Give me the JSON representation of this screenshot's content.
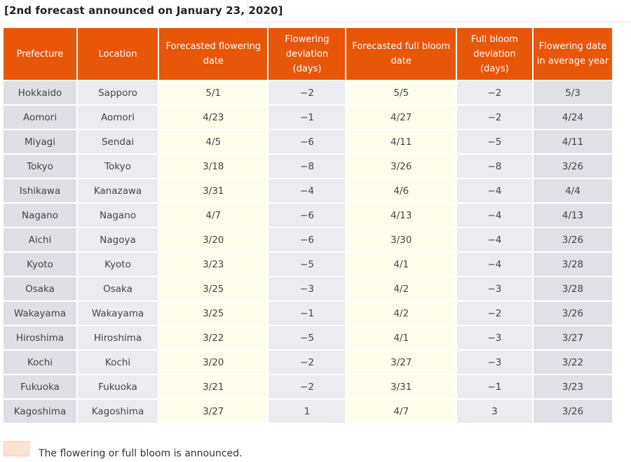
{
  "heading": "[2nd forecast announced on January 23, 2020]",
  "table": {
    "headers": {
      "prefecture": "Prefecture",
      "location": "Location",
      "forecasted_flowering_date": "Forecasted flowering date",
      "flowering_deviation": "Flowering deviation (days)",
      "forecasted_full_bloom_date": "Forecasted full bloom date",
      "full_bloom_deviation": "Full bloom deviation (days)",
      "flowering_date_average_year": "Flowering date in average year"
    },
    "rows": [
      {
        "prefecture": "Hokkaido",
        "location": "Sapporo",
        "flowering": "5/1",
        "flowering_dev": "−2",
        "full_bloom": "5/5",
        "full_bloom_dev": "−2",
        "average": "5/3"
      },
      {
        "prefecture": "Aomori",
        "location": "Aomori",
        "flowering": "4/23",
        "flowering_dev": "−1",
        "full_bloom": "4/27",
        "full_bloom_dev": "−2",
        "average": "4/24"
      },
      {
        "prefecture": "Miyagi",
        "location": "Sendai",
        "flowering": "4/5",
        "flowering_dev": "−6",
        "full_bloom": "4/11",
        "full_bloom_dev": "−5",
        "average": "4/11"
      },
      {
        "prefecture": "Tokyo",
        "location": "Tokyo",
        "flowering": "3/18",
        "flowering_dev": "−8",
        "full_bloom": "3/26",
        "full_bloom_dev": "−8",
        "average": "3/26"
      },
      {
        "prefecture": "Ishikawa",
        "location": "Kanazawa",
        "flowering": "3/31",
        "flowering_dev": "−4",
        "full_bloom": "4/6",
        "full_bloom_dev": "−4",
        "average": "4/4"
      },
      {
        "prefecture": "Nagano",
        "location": "Nagano",
        "flowering": "4/7",
        "flowering_dev": "−6",
        "full_bloom": "4/13",
        "full_bloom_dev": "−4",
        "average": "4/13"
      },
      {
        "prefecture": "Aichi",
        "location": "Nagoya",
        "flowering": "3/20",
        "flowering_dev": "−6",
        "full_bloom": "3/30",
        "full_bloom_dev": "−4",
        "average": "3/26"
      },
      {
        "prefecture": "Kyoto",
        "location": "Kyoto",
        "flowering": "3/23",
        "flowering_dev": "−5",
        "full_bloom": "4/1",
        "full_bloom_dev": "−4",
        "average": "3/28"
      },
      {
        "prefecture": "Osaka",
        "location": "Osaka",
        "flowering": "3/25",
        "flowering_dev": "−3",
        "full_bloom": "4/2",
        "full_bloom_dev": "−3",
        "average": "3/28"
      },
      {
        "prefecture": "Wakayama",
        "location": "Wakayama",
        "flowering": "3/25",
        "flowering_dev": "−1",
        "full_bloom": "4/2",
        "full_bloom_dev": "−2",
        "average": "3/26"
      },
      {
        "prefecture": "Hiroshima",
        "location": "Hiroshima",
        "flowering": "3/22",
        "flowering_dev": "−5",
        "full_bloom": "4/1",
        "full_bloom_dev": "−3",
        "average": "3/27"
      },
      {
        "prefecture": "Kochi",
        "location": "Kochi",
        "flowering": "3/20",
        "flowering_dev": "−2",
        "full_bloom": "3/27",
        "full_bloom_dev": "−3",
        "average": "3/22"
      },
      {
        "prefecture": "Fukuoka",
        "location": "Fukuoka",
        "flowering": "3/21",
        "flowering_dev": "−2",
        "full_bloom": "3/31",
        "full_bloom_dev": "−1",
        "average": "3/23"
      },
      {
        "prefecture": "Kagoshima",
        "location": "Kagoshima",
        "flowering": "3/27",
        "flowering_dev": "1",
        "full_bloom": "4/7",
        "full_bloom_dev": "3",
        "average": "3/26"
      }
    ]
  },
  "legend": {
    "text": "The flowering or full bloom is announced.",
    "swatch_color": "#fde3d6"
  },
  "colors": {
    "header": "#e8560a",
    "date_column": "#fdfdec",
    "gray_column": "#ebebf0"
  }
}
